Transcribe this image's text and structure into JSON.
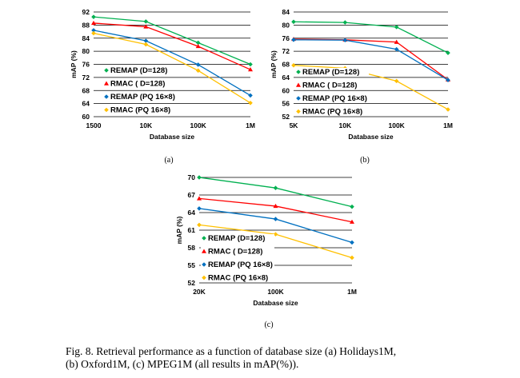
{
  "figure": {
    "caption_lines": [
      "Fig. 8.   Retrieval performance as a function of database size (a) Holidays1M,",
      "(b) Oxford1M, (c) MPEG1M (all results in mAP(%))."
    ]
  },
  "chart_data": [
    {
      "id": "a",
      "type": "line",
      "sublabel": "(a)",
      "xlabel": "Database size",
      "ylabel": "mAP (%)",
      "categories": [
        "1500",
        "10K",
        "100K",
        "1M"
      ],
      "ylim": [
        60,
        92
      ],
      "yticks": [
        60,
        64,
        68,
        72,
        76,
        80,
        84,
        88,
        92
      ],
      "grid": "horizontal",
      "legend_placement": "bottom-left",
      "series": [
        {
          "name": "REMAP (D=128)",
          "color": "#00b050",
          "marker": "diamond",
          "values": [
            90.5,
            89.1,
            82.6,
            76.0
          ]
        },
        {
          "name": "RMAC ( D=128)",
          "color": "#ff0000",
          "marker": "triangle",
          "values": [
            88.6,
            87.5,
            81.5,
            74.4
          ]
        },
        {
          "name": "REMAP (PQ 16×8)",
          "color": "#0070c0",
          "marker": "diamond",
          "values": [
            86.4,
            83.2,
            75.9,
            66.5
          ]
        },
        {
          "name": "RMAC (PQ 16×8)",
          "color": "#ffc000",
          "marker": "diamond",
          "values": [
            85.5,
            82.1,
            74.1,
            64.2
          ]
        }
      ]
    },
    {
      "id": "b",
      "type": "line",
      "sublabel": "(b)",
      "xlabel": "Database size",
      "ylabel": "mAP (%)",
      "categories": [
        "5K",
        "10K",
        "100K",
        "1M"
      ],
      "ylim": [
        52,
        84
      ],
      "yticks": [
        52,
        56,
        60,
        64,
        68,
        72,
        76,
        80,
        84
      ],
      "grid": "horizontal",
      "legend_placement": "bottom-left",
      "series": [
        {
          "name": "REMAP (D=128)",
          "color": "#00b050",
          "marker": "diamond",
          "values": [
            81.0,
            80.8,
            79.4,
            71.5
          ]
        },
        {
          "name": "RMAC ( D=128)",
          "color": "#ff0000",
          "marker": "triangle",
          "values": [
            75.7,
            75.5,
            74.8,
            63.3
          ]
        },
        {
          "name": "REMAP (PQ 16×8)",
          "color": "#0070c0",
          "marker": "diamond",
          "values": [
            75.5,
            75.4,
            72.6,
            63.2
          ]
        },
        {
          "name": "RMAC (PQ 16×8)",
          "color": "#ffc000",
          "marker": "diamond",
          "values": [
            67.7,
            66.8,
            62.9,
            54.2
          ]
        }
      ]
    },
    {
      "id": "c",
      "type": "line",
      "sublabel": "(c)",
      "xlabel": "Database size",
      "ylabel": "mAP (%)",
      "categories": [
        "20K",
        "100K",
        "1M"
      ],
      "ylim": [
        52,
        70
      ],
      "yticks": [
        52,
        55,
        58,
        61,
        64,
        67,
        70
      ],
      "grid": "horizontal",
      "legend_placement": "bottom-left",
      "series": [
        {
          "name": "REMAP (D=128)",
          "color": "#00b050",
          "marker": "diamond",
          "values": [
            70.0,
            68.2,
            65.0
          ]
        },
        {
          "name": "RMAC ( D=128)",
          "color": "#ff0000",
          "marker": "triangle",
          "values": [
            66.4,
            65.1,
            62.4
          ]
        },
        {
          "name": "REMAP (PQ 16×8)",
          "color": "#0070c0",
          "marker": "diamond",
          "values": [
            64.7,
            62.9,
            58.9
          ]
        },
        {
          "name": "RMAC (PQ 16×8)",
          "color": "#ffc000",
          "marker": "diamond",
          "values": [
            61.9,
            60.3,
            56.3
          ]
        }
      ]
    }
  ]
}
